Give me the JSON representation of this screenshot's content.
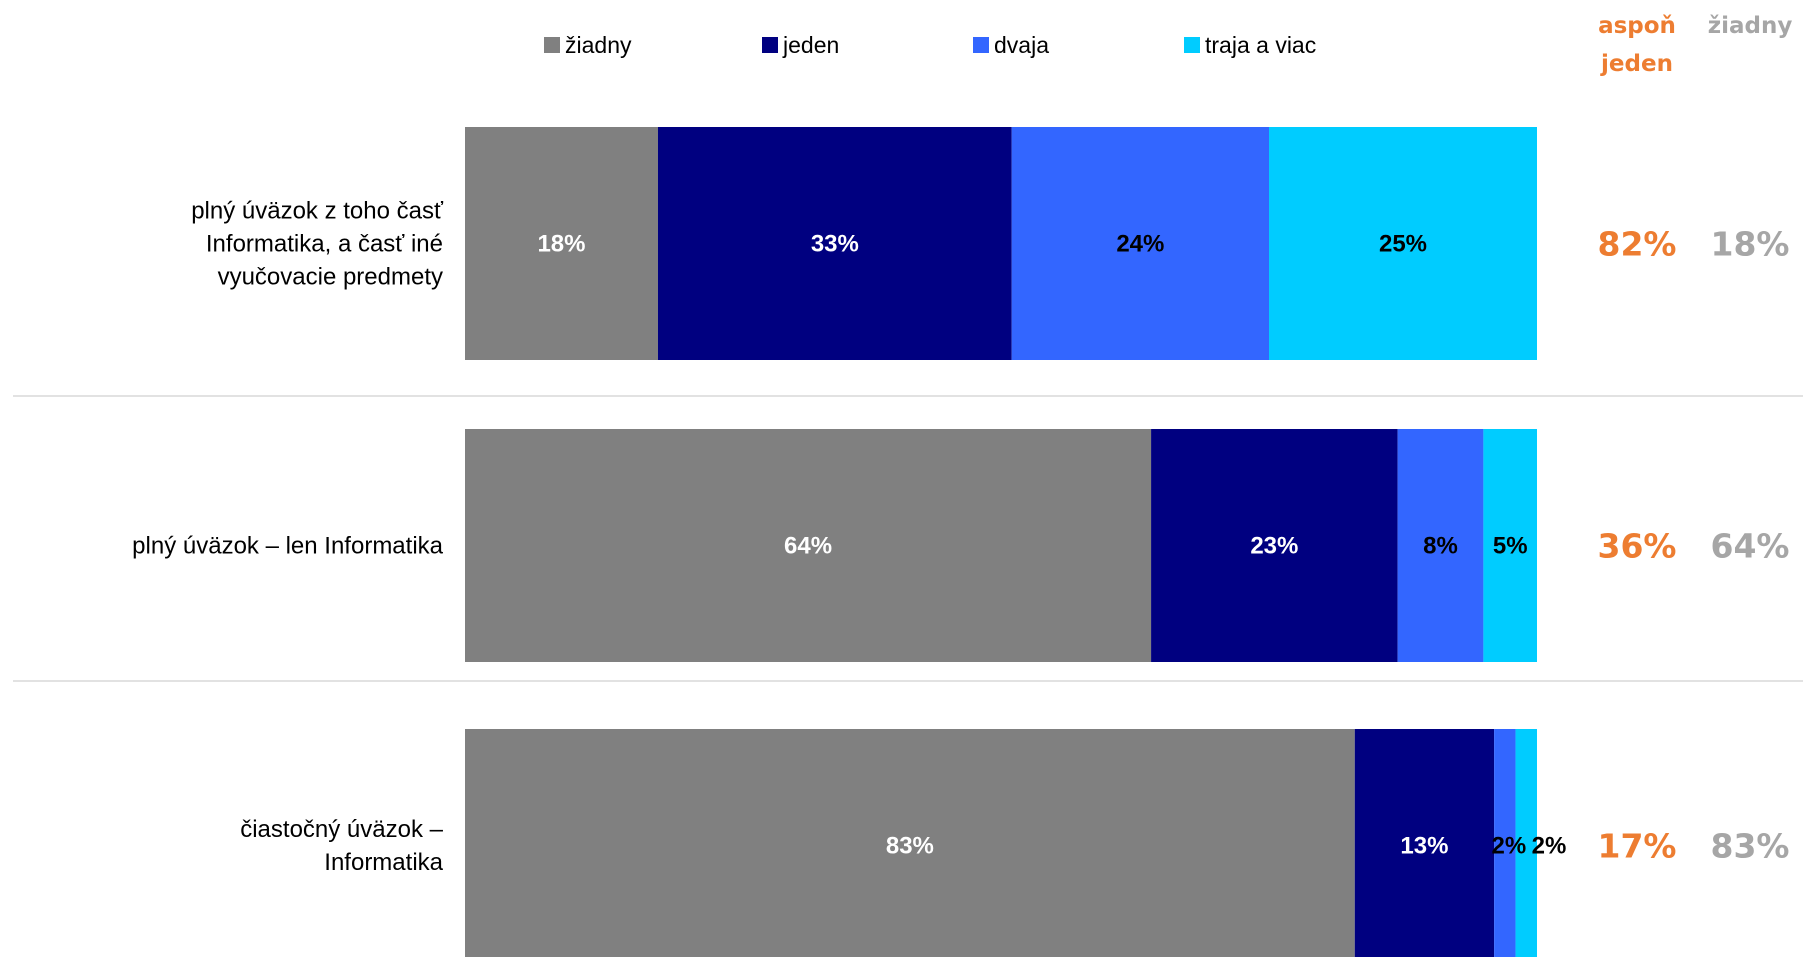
{
  "chart_data": {
    "type": "bar",
    "orientation": "horizontal",
    "stacked": true,
    "percent_stacked": true,
    "categories": [
      [
        "plný úväzok z toho časť",
        "Informatika, a časť iné",
        "vyučovacie predmety"
      ],
      [
        "plný úväzok – len Informatika"
      ],
      [
        "čiastočný úväzok –",
        "Informatika"
      ]
    ],
    "series": [
      {
        "name": "žiadny",
        "values": [
          18,
          64,
          83
        ],
        "labels": [
          "18%",
          "64%",
          "83%"
        ],
        "color": "#808080",
        "label_color": "#ffffff"
      },
      {
        "name": "jeden",
        "values": [
          33,
          23,
          13
        ],
        "labels": [
          "33%",
          "23%",
          "13%"
        ],
        "color": "#000080",
        "label_color": "#ffffff"
      },
      {
        "name": "dvaja",
        "values": [
          24,
          8,
          2
        ],
        "labels": [
          "24%",
          "8%",
          "2%"
        ],
        "color": "#3366ff",
        "label_color": "#000000"
      },
      {
        "name": "traja a viac",
        "values": [
          25,
          5,
          2
        ],
        "labels": [
          "25%",
          "5%",
          "2%"
        ],
        "color": "#00ccff",
        "label_color": "#000000"
      }
    ],
    "legend_position": "top",
    "grid": false,
    "summary_columns": [
      {
        "header": [
          "aspoň",
          "jeden"
        ],
        "values": [
          "82%",
          "36%",
          "17%"
        ],
        "color": "#ed7d31"
      },
      {
        "header": [
          "žiadny"
        ],
        "values": [
          "18%",
          "64%",
          "83%"
        ],
        "color": "#a6a6a6"
      }
    ],
    "separator_color": "#d9d9d9"
  }
}
